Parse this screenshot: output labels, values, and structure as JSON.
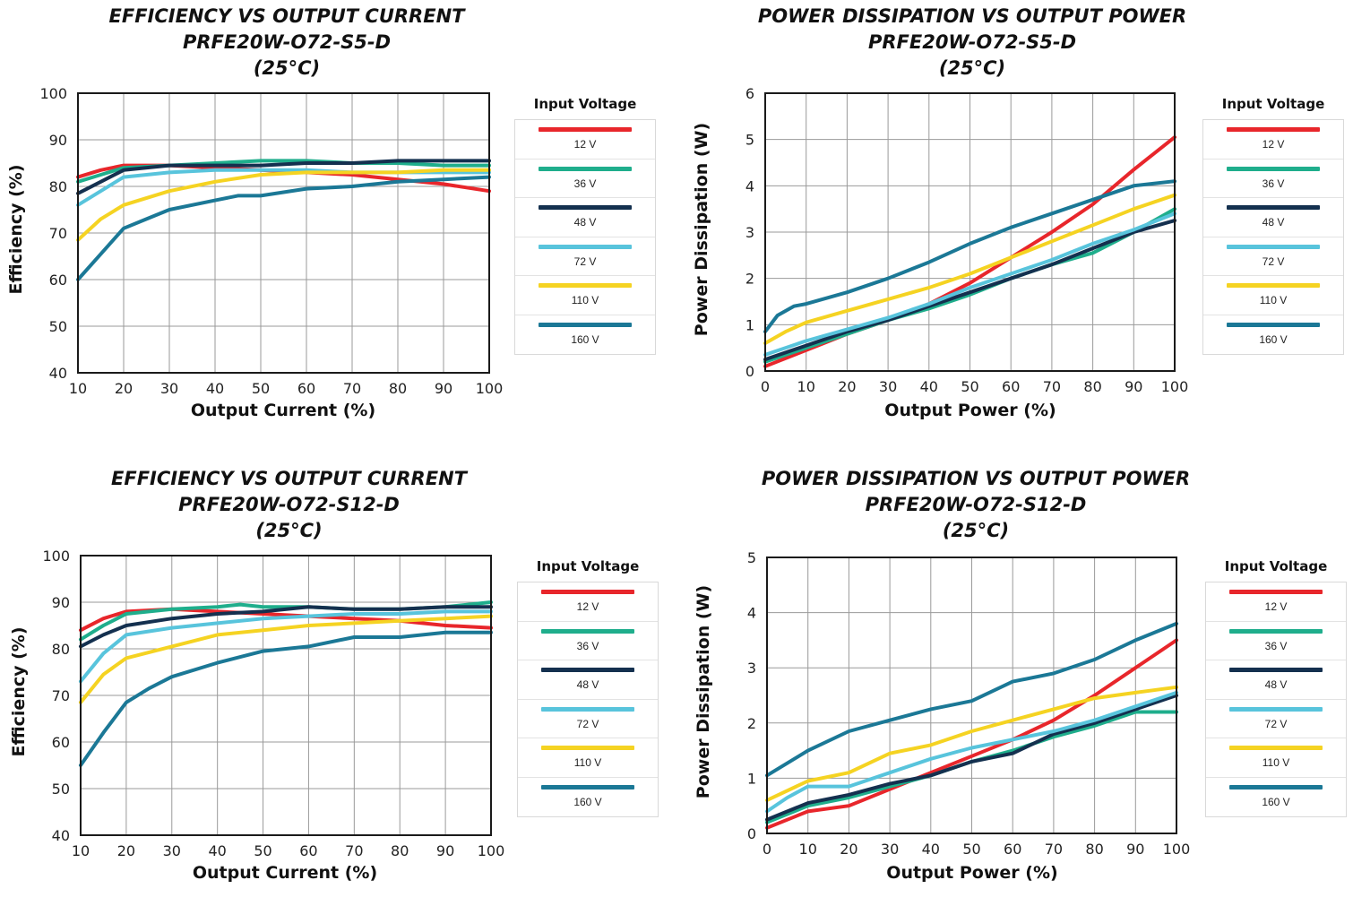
{
  "chart_data": [
    {
      "type": "line",
      "title": [
        "EFFICIENCY VS OUTPUT CURRENT",
        "PRFE20W-O72-S5-D",
        "(25°C)"
      ],
      "xlabel": "Output Current (%)",
      "ylabel": "Efficiency (%)",
      "xlim": [
        10,
        100
      ],
      "ylim": [
        40,
        100
      ],
      "xticks": [
        10,
        20,
        30,
        40,
        50,
        60,
        70,
        80,
        90,
        100
      ],
      "yticks": [
        40,
        50,
        60,
        70,
        80,
        90,
        100
      ],
      "grid": true,
      "legend": {
        "title": "Input Voltage",
        "placement": "right"
      },
      "series": [
        {
          "name": "12 V",
          "color": "#e8262b",
          "x": [
            10,
            15,
            20,
            30,
            40,
            50,
            60,
            70,
            80,
            90,
            100
          ],
          "y": [
            82,
            83.5,
            84.5,
            84.5,
            84,
            83.5,
            83,
            82.5,
            81.5,
            80.5,
            79
          ]
        },
        {
          "name": "36 V",
          "color": "#1fae8c",
          "x": [
            10,
            15,
            20,
            30,
            40,
            50,
            60,
            70,
            80,
            90,
            100
          ],
          "y": [
            81,
            82.5,
            84,
            84.5,
            85,
            85.5,
            85.5,
            85,
            85,
            84.5,
            84.5
          ]
        },
        {
          "name": "48 V",
          "color": "#14304f",
          "x": [
            10,
            15,
            20,
            30,
            40,
            50,
            60,
            70,
            80,
            90,
            100
          ],
          "y": [
            78.5,
            81,
            83.5,
            84.5,
            84.5,
            84.5,
            85,
            85,
            85.5,
            85.5,
            85.5
          ]
        },
        {
          "name": "72 V",
          "color": "#58c4dc",
          "x": [
            10,
            15,
            20,
            30,
            40,
            50,
            60,
            70,
            80,
            90,
            100
          ],
          "y": [
            76,
            79,
            82,
            83,
            83.5,
            83.5,
            83.5,
            83,
            83,
            83,
            83
          ]
        },
        {
          "name": "110 V",
          "color": "#f5d322",
          "x": [
            10,
            15,
            20,
            30,
            40,
            50,
            60,
            70,
            80,
            90,
            100
          ],
          "y": [
            68.5,
            73,
            76,
            79,
            81,
            82.5,
            83,
            83,
            83,
            83.5,
            83.5
          ]
        },
        {
          "name": "160 V",
          "color": "#1b7896",
          "x": [
            10,
            15,
            20,
            25,
            30,
            40,
            45,
            50,
            60,
            70,
            80,
            90,
            100
          ],
          "y": [
            60,
            65.5,
            71,
            73,
            75,
            77,
            78,
            78,
            79.5,
            80,
            81,
            81.5,
            82
          ]
        }
      ]
    },
    {
      "type": "line",
      "title": [
        "POWER DISSIPATION VS OUTPUT POWER",
        "PRFE20W-O72-S5-D",
        "(25°C)"
      ],
      "xlabel": "Output Power (%)",
      "ylabel": "Power Dissipation (W)",
      "xlim": [
        0,
        100
      ],
      "ylim": [
        0,
        6
      ],
      "xticks": [
        0,
        10,
        20,
        30,
        40,
        50,
        60,
        70,
        80,
        90,
        100
      ],
      "yticks": [
        0,
        1,
        2,
        3,
        4,
        5,
        6
      ],
      "grid": true,
      "legend": {
        "title": "Input Voltage",
        "placement": "right"
      },
      "series": [
        {
          "name": "12 V",
          "color": "#e8262b",
          "x": [
            0,
            10,
            20,
            30,
            40,
            50,
            60,
            70,
            80,
            90,
            100
          ],
          "y": [
            0.1,
            0.45,
            0.8,
            1.1,
            1.45,
            1.9,
            2.45,
            3.0,
            3.6,
            4.35,
            5.05
          ]
        },
        {
          "name": "36 V",
          "color": "#1fae8c",
          "x": [
            0,
            10,
            20,
            30,
            40,
            50,
            60,
            70,
            80,
            90,
            100
          ],
          "y": [
            0.2,
            0.5,
            0.8,
            1.1,
            1.35,
            1.65,
            2.0,
            2.3,
            2.55,
            3.0,
            3.5
          ]
        },
        {
          "name": "48 V",
          "color": "#14304f",
          "x": [
            0,
            10,
            20,
            30,
            40,
            50,
            60,
            70,
            80,
            90,
            100
          ],
          "y": [
            0.25,
            0.55,
            0.85,
            1.1,
            1.4,
            1.7,
            2.0,
            2.3,
            2.65,
            3.0,
            3.25
          ]
        },
        {
          "name": "72 V",
          "color": "#58c4dc",
          "x": [
            0,
            10,
            20,
            30,
            40,
            50,
            60,
            70,
            80,
            90,
            100
          ],
          "y": [
            0.35,
            0.65,
            0.9,
            1.15,
            1.45,
            1.8,
            2.1,
            2.4,
            2.75,
            3.05,
            3.4
          ]
        },
        {
          "name": "110 V",
          "color": "#f5d322",
          "x": [
            0,
            5,
            10,
            20,
            30,
            40,
            50,
            60,
            70,
            80,
            90,
            100
          ],
          "y": [
            0.6,
            0.85,
            1.05,
            1.3,
            1.55,
            1.8,
            2.1,
            2.45,
            2.8,
            3.15,
            3.5,
            3.8
          ]
        },
        {
          "name": "160 V",
          "color": "#1b7896",
          "x": [
            0,
            3,
            7,
            10,
            20,
            30,
            40,
            50,
            60,
            70,
            80,
            90,
            95,
            100
          ],
          "y": [
            0.85,
            1.2,
            1.4,
            1.45,
            1.7,
            2.0,
            2.35,
            2.75,
            3.1,
            3.4,
            3.7,
            4.0,
            4.05,
            4.1
          ]
        }
      ]
    },
    {
      "type": "line",
      "title": [
        "EFFICIENCY VS OUTPUT CURRENT",
        "PRFE20W-O72-S12-D",
        "(25°C)"
      ],
      "xlabel": "Output Current (%)",
      "ylabel": "Efficiency (%)",
      "xlim": [
        10,
        100
      ],
      "ylim": [
        40,
        100
      ],
      "xticks": [
        10,
        20,
        30,
        40,
        50,
        60,
        70,
        80,
        90,
        100
      ],
      "yticks": [
        40,
        50,
        60,
        70,
        80,
        90,
        100
      ],
      "grid": true,
      "legend": {
        "title": "Input Voltage",
        "placement": "right"
      },
      "series": [
        {
          "name": "12 V",
          "color": "#e8262b",
          "x": [
            10,
            15,
            20,
            30,
            40,
            50,
            60,
            70,
            80,
            90,
            100
          ],
          "y": [
            84,
            86.5,
            88,
            88.5,
            88,
            87.5,
            87,
            86.5,
            86,
            85,
            84.5
          ]
        },
        {
          "name": "36 V",
          "color": "#1fae8c",
          "x": [
            10,
            15,
            20,
            30,
            40,
            45,
            50,
            60,
            70,
            80,
            90,
            100
          ],
          "y": [
            82,
            85,
            87.5,
            88.5,
            89,
            89.5,
            89,
            89,
            88.5,
            88.5,
            89,
            90
          ]
        },
        {
          "name": "48 V",
          "color": "#14304f",
          "x": [
            10,
            15,
            20,
            30,
            40,
            50,
            60,
            70,
            80,
            90,
            100
          ],
          "y": [
            80.5,
            83,
            85,
            86.5,
            87.5,
            88,
            89,
            88.5,
            88.5,
            89,
            89
          ]
        },
        {
          "name": "72 V",
          "color": "#58c4dc",
          "x": [
            10,
            15,
            20,
            30,
            40,
            50,
            60,
            70,
            80,
            90,
            100
          ],
          "y": [
            73,
            79,
            83,
            84.5,
            85.5,
            86.5,
            87,
            87.5,
            87.5,
            88,
            88
          ]
        },
        {
          "name": "110 V",
          "color": "#f5d322",
          "x": [
            10,
            15,
            20,
            30,
            40,
            50,
            60,
            70,
            80,
            90,
            100
          ],
          "y": [
            68.5,
            74.5,
            78,
            80.5,
            83,
            84,
            85,
            85.5,
            86,
            86.5,
            87
          ]
        },
        {
          "name": "160 V",
          "color": "#1b7896",
          "x": [
            10,
            15,
            20,
            25,
            30,
            40,
            50,
            60,
            70,
            80,
            90,
            100
          ],
          "y": [
            55,
            62,
            68.5,
            71.5,
            74,
            77,
            79.5,
            80.5,
            82.5,
            82.5,
            83.5,
            83.5
          ]
        }
      ]
    },
    {
      "type": "line",
      "title": [
        "POWER DISSIPATION VS OUTPUT POWER",
        "PRFE20W-O72-S12-D",
        "(25°C)"
      ],
      "xlabel": "Output Power (%)",
      "ylabel": "Power Dissipation (W)",
      "xlim": [
        0,
        100
      ],
      "ylim": [
        0,
        5
      ],
      "xticks": [
        0,
        10,
        20,
        30,
        40,
        50,
        60,
        70,
        80,
        90,
        100
      ],
      "yticks": [
        0,
        1,
        2,
        3,
        4,
        5
      ],
      "grid": true,
      "legend": {
        "title": "Input Voltage",
        "placement": "right"
      },
      "series": [
        {
          "name": "12 V",
          "color": "#e8262b",
          "x": [
            0,
            10,
            20,
            30,
            40,
            50,
            60,
            70,
            80,
            90,
            100
          ],
          "y": [
            0.1,
            0.4,
            0.5,
            0.8,
            1.1,
            1.4,
            1.7,
            2.05,
            2.5,
            3.0,
            3.5
          ]
        },
        {
          "name": "36 V",
          "color": "#1fae8c",
          "x": [
            0,
            10,
            20,
            30,
            40,
            50,
            60,
            70,
            80,
            90,
            95,
            100
          ],
          "y": [
            0.2,
            0.5,
            0.65,
            0.85,
            1.05,
            1.3,
            1.5,
            1.75,
            1.95,
            2.2,
            2.2,
            2.2
          ]
        },
        {
          "name": "48 V",
          "color": "#14304f",
          "x": [
            0,
            10,
            20,
            30,
            40,
            50,
            60,
            70,
            80,
            90,
            100
          ],
          "y": [
            0.25,
            0.55,
            0.7,
            0.9,
            1.05,
            1.3,
            1.45,
            1.8,
            2.0,
            2.25,
            2.5
          ]
        },
        {
          "name": "72 V",
          "color": "#58c4dc",
          "x": [
            0,
            5,
            10,
            20,
            30,
            40,
            50,
            60,
            70,
            80,
            90,
            100
          ],
          "y": [
            0.4,
            0.65,
            0.85,
            0.85,
            1.1,
            1.35,
            1.55,
            1.7,
            1.85,
            2.05,
            2.3,
            2.55
          ]
        },
        {
          "name": "110 V",
          "color": "#f5d322",
          "x": [
            0,
            10,
            20,
            30,
            40,
            50,
            60,
            70,
            80,
            90,
            100
          ],
          "y": [
            0.6,
            0.95,
            1.1,
            1.45,
            1.6,
            1.85,
            2.05,
            2.25,
            2.45,
            2.55,
            2.65
          ]
        },
        {
          "name": "160 V",
          "color": "#1b7896",
          "x": [
            0,
            10,
            20,
            30,
            40,
            50,
            60,
            70,
            80,
            90,
            100
          ],
          "y": [
            1.05,
            1.5,
            1.85,
            2.05,
            2.25,
            2.4,
            2.75,
            2.9,
            3.15,
            3.5,
            3.8
          ]
        }
      ]
    }
  ]
}
